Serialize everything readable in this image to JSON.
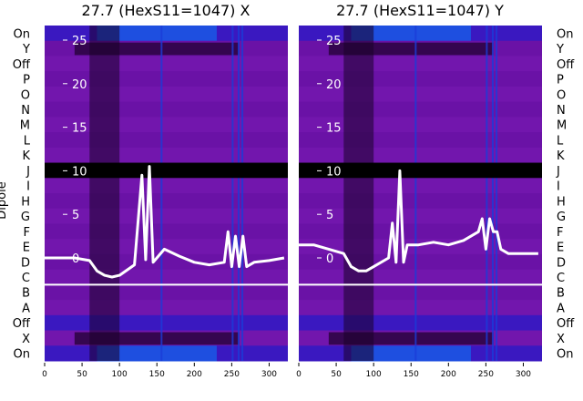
{
  "chart_data": [
    {
      "type": "heatmap",
      "title": "27.7 (HexS11=1047) X",
      "ylabel": "Dipole",
      "row_labels": [
        "On",
        "Y",
        "Off",
        "P",
        "O",
        "N",
        "M",
        "L",
        "K",
        "J",
        "I",
        "H",
        "G",
        "F",
        "E",
        "D",
        "C",
        "B",
        "A",
        "Off",
        "X",
        "On"
      ],
      "x_ticks": [
        0,
        50,
        100,
        150,
        200,
        250,
        300
      ],
      "xlim": [
        0,
        325
      ],
      "overlay_yticks": [
        0,
        5,
        10,
        15,
        20,
        25
      ],
      "overlay_ylim": [
        -3,
        28
      ],
      "overlay_line": {
        "color": "#ffffff",
        "x": [
          0,
          20,
          40,
          60,
          70,
          80,
          90,
          100,
          120,
          130,
          135,
          140,
          145,
          150,
          160,
          180,
          200,
          220,
          240,
          245,
          250,
          255,
          260,
          265,
          270,
          280,
          300,
          320
        ],
        "y": [
          0,
          0,
          0,
          -0.3,
          -1.5,
          -2,
          -2.2,
          -2,
          -0.8,
          9.5,
          -0.2,
          10.5,
          -0.5,
          0,
          1,
          0.2,
          -0.5,
          -0.8,
          -0.5,
          3,
          -1,
          2.5,
          -1,
          2.5,
          -1,
          -0.5,
          -0.3,
          0
        ]
      },
      "hot_columns": [
        70,
        75,
        80,
        85,
        90,
        155,
        250,
        258,
        263
      ]
    },
    {
      "type": "heatmap",
      "title": "27.7 (HexS11=1047) Y",
      "row_labels": [
        "On",
        "Y",
        "Off",
        "P",
        "O",
        "N",
        "M",
        "L",
        "K",
        "J",
        "I",
        "H",
        "G",
        "F",
        "E",
        "D",
        "C",
        "B",
        "A",
        "Off",
        "X",
        "On"
      ],
      "x_ticks": [
        0,
        50,
        100,
        150,
        200,
        250,
        300
      ],
      "xlim": [
        0,
        325
      ],
      "overlay_yticks": [
        0,
        5,
        10,
        15,
        20,
        25
      ],
      "overlay_ylim": [
        -3,
        28
      ],
      "overlay_line": {
        "color": "#ffffff",
        "x": [
          0,
          20,
          40,
          60,
          70,
          80,
          90,
          100,
          120,
          125,
          130,
          135,
          140,
          145,
          150,
          160,
          180,
          200,
          220,
          240,
          245,
          250,
          255,
          260,
          265,
          270,
          280,
          300,
          320
        ],
        "y": [
          1.5,
          1.5,
          1,
          0.5,
          -1,
          -1.5,
          -1.5,
          -1,
          0,
          4,
          -0.5,
          10,
          -0.5,
          1.5,
          1.5,
          1.5,
          1.8,
          1.5,
          2,
          3,
          4.5,
          1,
          4.5,
          3,
          3,
          1,
          0.5,
          0.5,
          0.5
        ]
      },
      "hot_columns": [
        70,
        75,
        80,
        85,
        90,
        155,
        250,
        258,
        263
      ]
    }
  ]
}
